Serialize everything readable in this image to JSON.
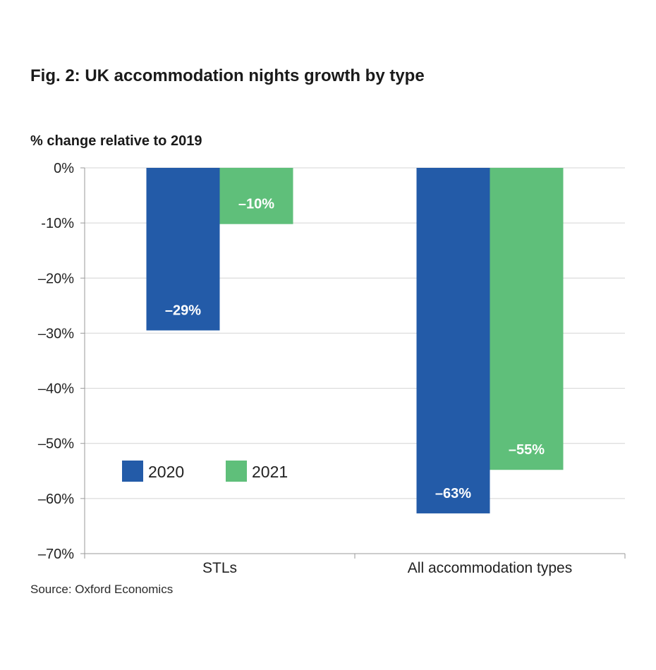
{
  "title": "Fig. 2: UK accommodation nights growth by type",
  "y_unit_label": "% change relative to 2019",
  "source": "Source: Oxford Economics",
  "colors": {
    "series_2020": "#235ba8",
    "series_2021": "#5fbf7a",
    "grid": "#d4d4d4",
    "axis": "#9a9a9a"
  },
  "chart_data": {
    "type": "bar",
    "title": "Fig. 2: UK accommodation nights growth by type",
    "ylabel": "% change relative to 2019",
    "xlabel": "",
    "categories": [
      "STLs",
      "All accommodation types"
    ],
    "series": [
      {
        "name": "2020",
        "values": [
          -29.5,
          -62.7
        ],
        "labels": [
          "–29%",
          "–63%"
        ]
      },
      {
        "name": "2021",
        "values": [
          -10.2,
          -54.8
        ],
        "labels": [
          "–10%",
          "–55%"
        ]
      }
    ],
    "ylim": [
      -70,
      0
    ],
    "yticks": [
      0,
      -10,
      -20,
      -30,
      -40,
      -50,
      -60,
      -70
    ],
    "ytick_labels": [
      "0%",
      "-10%",
      "–20%",
      "–30%",
      "–40%",
      "–50%",
      "–60%",
      "–70%"
    ],
    "grid": true,
    "legend_position": "inside-bottom-left"
  }
}
